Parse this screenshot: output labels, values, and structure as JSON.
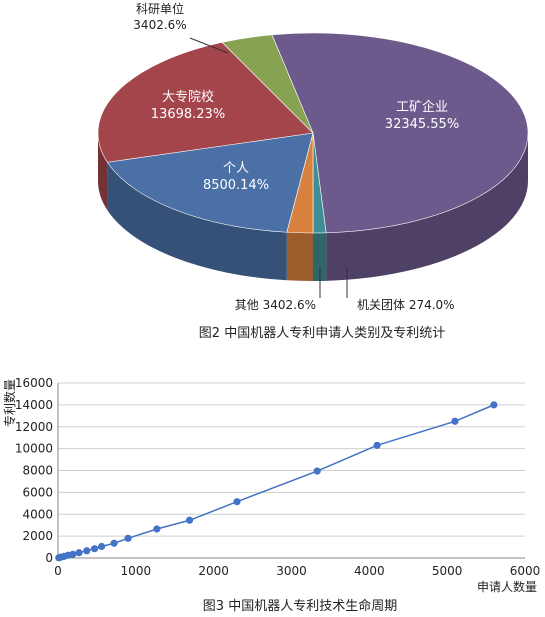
{
  "chart_data": [
    {
      "type": "pie",
      "slices": [
        {
          "label": "工矿企业",
          "value_text": "32345.55%",
          "color": "#6c5a8c"
        },
        {
          "label": "机关团体",
          "value_text": "274.0%",
          "color": "#3f8d95"
        },
        {
          "label": "其他",
          "value_text": "3402.6%",
          "color": "#d8813e"
        },
        {
          "label": "个人",
          "value_text": "8500.14%",
          "color": "#4a70a6"
        },
        {
          "label": "大专院校",
          "value_text": "13698.23%",
          "color": "#a3454a"
        },
        {
          "label": "科研单位",
          "value_text": "3402.6%",
          "color": "#88a253"
        }
      ],
      "labels_text": {
        "gongkuang": "工矿企业",
        "gongkuang_val": "32345.55%",
        "geren": "个人",
        "geren_val": "8500.14%",
        "dazhuan": "大专院校",
        "dazhuan_val": "13698.23%",
        "keyan": "科研单位",
        "keyan_val": "3402.6%",
        "qita": "其他 3402.6%",
        "jiguan": "机关团体 274.0%"
      },
      "caption": "图2  中国机器人专利申请人类别及专利统计"
    },
    {
      "type": "line",
      "xlabel": "申请人数量",
      "ylabel": "专利数量",
      "xlim": [
        0,
        6000
      ],
      "ylim": [
        0,
        16000
      ],
      "x_ticks": [
        0,
        1000,
        2000,
        3000,
        4000,
        5000,
        6000
      ],
      "y_ticks": [
        0,
        2000,
        4000,
        6000,
        8000,
        10000,
        12000,
        14000,
        16000
      ],
      "grid": true,
      "series": [
        {
          "color": "#4472c4",
          "points": [
            [
              10,
              20
            ],
            [
              40,
              80
            ],
            [
              80,
              150
            ],
            [
              130,
              250
            ],
            [
              190,
              330
            ],
            [
              270,
              480
            ],
            [
              370,
              660
            ],
            [
              470,
              850
            ],
            [
              560,
              1050
            ],
            [
              720,
              1350
            ],
            [
              900,
              1800
            ],
            [
              1270,
              2650
            ],
            [
              1690,
              3450
            ],
            [
              2300,
              5150
            ],
            [
              3330,
              7950
            ],
            [
              4100,
              10300
            ],
            [
              5100,
              12500
            ],
            [
              5600,
              14000
            ]
          ]
        }
      ],
      "caption": "图3  中国机器人专利技术生命周期"
    }
  ]
}
